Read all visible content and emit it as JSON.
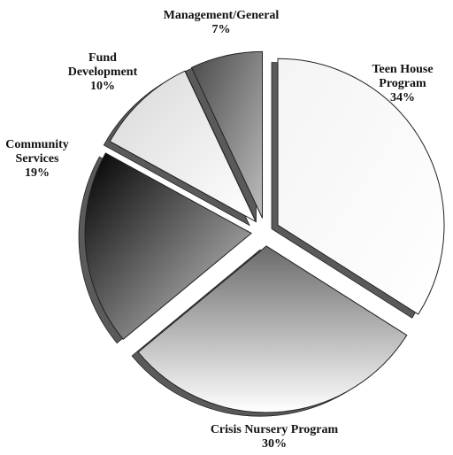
{
  "chart_data": {
    "type": "pie",
    "categories": [
      "Teen House Program",
      "Crisis Nursery Program",
      "Community Services",
      "Fund Development",
      "Management/General"
    ],
    "values": [
      34,
      30,
      19,
      10,
      7
    ],
    "value_labels": [
      "34%",
      "30%",
      "19%",
      "10%",
      "7%"
    ],
    "colors": [
      "#f4f4f4",
      "#6a6a6a",
      "#000000",
      "#d8d8d8",
      "#4a4a4a"
    ]
  }
}
